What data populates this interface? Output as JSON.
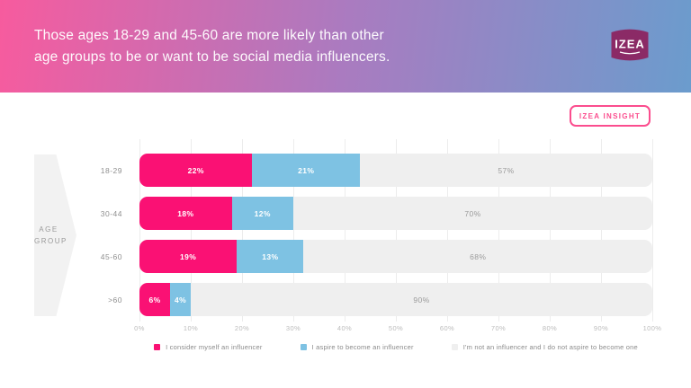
{
  "header": {
    "title_line1": "Those ages 18-29 and 45-60 are more likely than other",
    "title_line2": "age groups to be or want to be social media influencers.",
    "logo_text": "IZEA"
  },
  "insight_badge": {
    "label": "IZEA INSIGHT"
  },
  "colors": {
    "header_gradient_left": "#f75b9e",
    "header_gradient_mid": "#aa7bc0",
    "header_gradient_right": "#6b9ccd",
    "logo_badge": "#8b2a66",
    "insight_pink": "#fb4d8e",
    "bar_pink": "#fa1174",
    "bar_blue": "#7ec2e3",
    "bar_gray": "#efefef"
  },
  "chart_data": {
    "type": "bar",
    "orientation": "horizontal",
    "stacked": true,
    "unit": "%",
    "axis_title": "AGE\nGROUP",
    "categories": [
      "18-29",
      "30-44",
      "45-60",
      ">60"
    ],
    "series": [
      {
        "name": "I consider myself an influencer",
        "color": "#fa1174",
        "label_color": "#ffffff",
        "values": [
          22,
          18,
          19,
          6
        ]
      },
      {
        "name": "I aspire to become an influencer",
        "color": "#7ec2e3",
        "label_color": "#ffffff",
        "values": [
          21,
          12,
          13,
          4
        ]
      },
      {
        "name": "I'm not an influencer and I do not aspire to become one",
        "color": "#efefef",
        "label_color": "#9b9b9b",
        "values": [
          57,
          70,
          68,
          90
        ]
      }
    ],
    "x_ticks": [
      "0%",
      "10%",
      "20%",
      "30%",
      "40%",
      "50%",
      "60%",
      "70%",
      "80%",
      "90%",
      "100%"
    ],
    "xlim": [
      0,
      100
    ],
    "grid": true,
    "legend_position": "bottom"
  }
}
